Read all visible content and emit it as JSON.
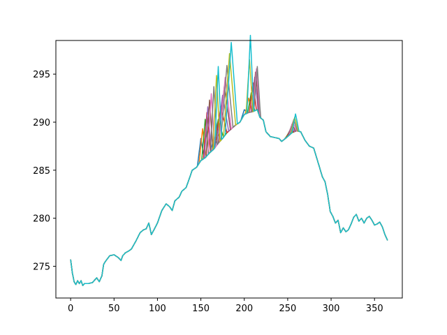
{
  "chart_data": {
    "type": "line",
    "title": "",
    "xlabel": "",
    "ylabel": "",
    "xlim": [
      -17,
      382
    ],
    "ylim": [
      271.7,
      298.5
    ],
    "grid": false,
    "xticks": [
      0,
      50,
      100,
      150,
      200,
      250,
      300,
      350
    ],
    "yticks": [
      275,
      280,
      285,
      290,
      295
    ],
    "colors": [
      "#1f77b4",
      "#ff7f0e",
      "#2ca02c",
      "#d62728",
      "#9467bd",
      "#8c564b",
      "#e377c2",
      "#7f7f7f",
      "#bcbd22",
      "#17becf"
    ],
    "base": {
      "x": [
        0,
        2,
        4,
        6,
        8,
        10,
        12,
        14,
        16,
        18,
        20,
        25,
        30,
        33,
        36,
        38,
        40,
        45,
        50,
        55,
        58,
        60,
        63,
        67,
        70,
        75,
        80,
        84,
        87,
        90,
        93,
        96,
        100,
        105,
        110,
        114,
        117,
        120,
        125,
        128,
        133,
        137,
        140,
        145,
        150,
        155,
        160,
        165,
        170,
        175,
        180,
        185,
        190,
        195,
        200,
        205,
        210,
        215,
        218,
        222,
        225,
        230,
        235,
        240,
        243,
        246,
        250,
        255,
        260,
        265,
        270,
        275,
        280,
        285,
        290,
        293,
        296,
        299,
        302,
        305,
        308,
        311,
        314,
        317,
        320,
        323,
        326,
        329,
        332,
        335,
        338,
        341,
        344,
        347,
        350,
        353,
        356,
        359,
        362,
        365
      ],
      "y": [
        275.7,
        274.3,
        273.4,
        273.1,
        273.5,
        273.2,
        273.5,
        273.0,
        273.2,
        273.2,
        273.2,
        273.3,
        273.8,
        273.4,
        274.0,
        275.2,
        275.5,
        276.1,
        276.2,
        275.9,
        275.6,
        276.1,
        276.4,
        276.6,
        276.8,
        277.6,
        278.5,
        278.8,
        278.9,
        279.5,
        278.3,
        278.8,
        279.5,
        280.8,
        281.5,
        281.2,
        280.8,
        281.8,
        282.2,
        282.8,
        283.2,
        284.2,
        285.0,
        285.3,
        286.0,
        286.3,
        286.8,
        287.2,
        287.8,
        288.3,
        288.9,
        289.3,
        289.7,
        290.0,
        290.8,
        291.0,
        291.1,
        291.3,
        290.5,
        290.2,
        289.0,
        288.5,
        288.4,
        288.3,
        288.0,
        288.2,
        288.5,
        288.9,
        289.1,
        289.0,
        288.1,
        287.5,
        287.3,
        285.8,
        284.3,
        283.8,
        282.5,
        280.7,
        280.2,
        279.5,
        279.8,
        278.5,
        279.0,
        278.6,
        278.8,
        279.4,
        280.1,
        280.4,
        279.7,
        280.0,
        279.5,
        280.0,
        280.2,
        279.8,
        279.3,
        279.4,
        279.6,
        279.1,
        278.3,
        277.7
      ]
    },
    "series": [
      {
        "spikes": [
          [
            150,
            2.3,
            3
          ],
          [
            165,
            1.2,
            3
          ],
          [
            200,
            0.5,
            3
          ],
          [
            250,
            0.2,
            3
          ]
        ]
      },
      {
        "spikes": [
          [
            152,
            3.2,
            3
          ],
          [
            168,
            1.5,
            4
          ],
          [
            205,
            1.5,
            3
          ],
          [
            251,
            0.3,
            3
          ]
        ]
      },
      {
        "spikes": [
          [
            155,
            4.0,
            3
          ],
          [
            170,
            2.5,
            5
          ],
          [
            208,
            2.0,
            3
          ],
          [
            252,
            0.4,
            3
          ]
        ]
      },
      {
        "spikes": [
          [
            157,
            4.5,
            3
          ],
          [
            173,
            3.5,
            6
          ],
          [
            210,
            3.0,
            3
          ],
          [
            253,
            0.5,
            3
          ]
        ]
      },
      {
        "spikes": [
          [
            158,
            5.0,
            3
          ],
          [
            175,
            4.5,
            6
          ],
          [
            212,
            3.5,
            3
          ],
          [
            254,
            0.7,
            3
          ]
        ]
      },
      {
        "spikes": [
          [
            160,
            5.5,
            3
          ],
          [
            177,
            5.2,
            6
          ],
          [
            213,
            4.0,
            3
          ],
          [
            255,
            0.9,
            3
          ]
        ]
      },
      {
        "spikes": [
          [
            162,
            6.0,
            3
          ],
          [
            178,
            6.0,
            6
          ],
          [
            214,
            4.3,
            3
          ],
          [
            256,
            1.1,
            3
          ]
        ]
      },
      {
        "spikes": [
          [
            165,
            6.5,
            3
          ],
          [
            180,
            7.0,
            6
          ],
          [
            215,
            4.5,
            3
          ],
          [
            257,
            1.3,
            3
          ]
        ]
      },
      {
        "spikes": [
          [
            168,
            7.3,
            3
          ],
          [
            183,
            8.0,
            6
          ],
          [
            206,
            5.5,
            3
          ],
          [
            258,
            1.5,
            3
          ]
        ]
      },
      {
        "spikes": [
          [
            170,
            8.0,
            3
          ],
          [
            185,
            9.0,
            6
          ],
          [
            207,
            8.0,
            3
          ],
          [
            259,
            1.8,
            3
          ]
        ]
      }
    ]
  }
}
